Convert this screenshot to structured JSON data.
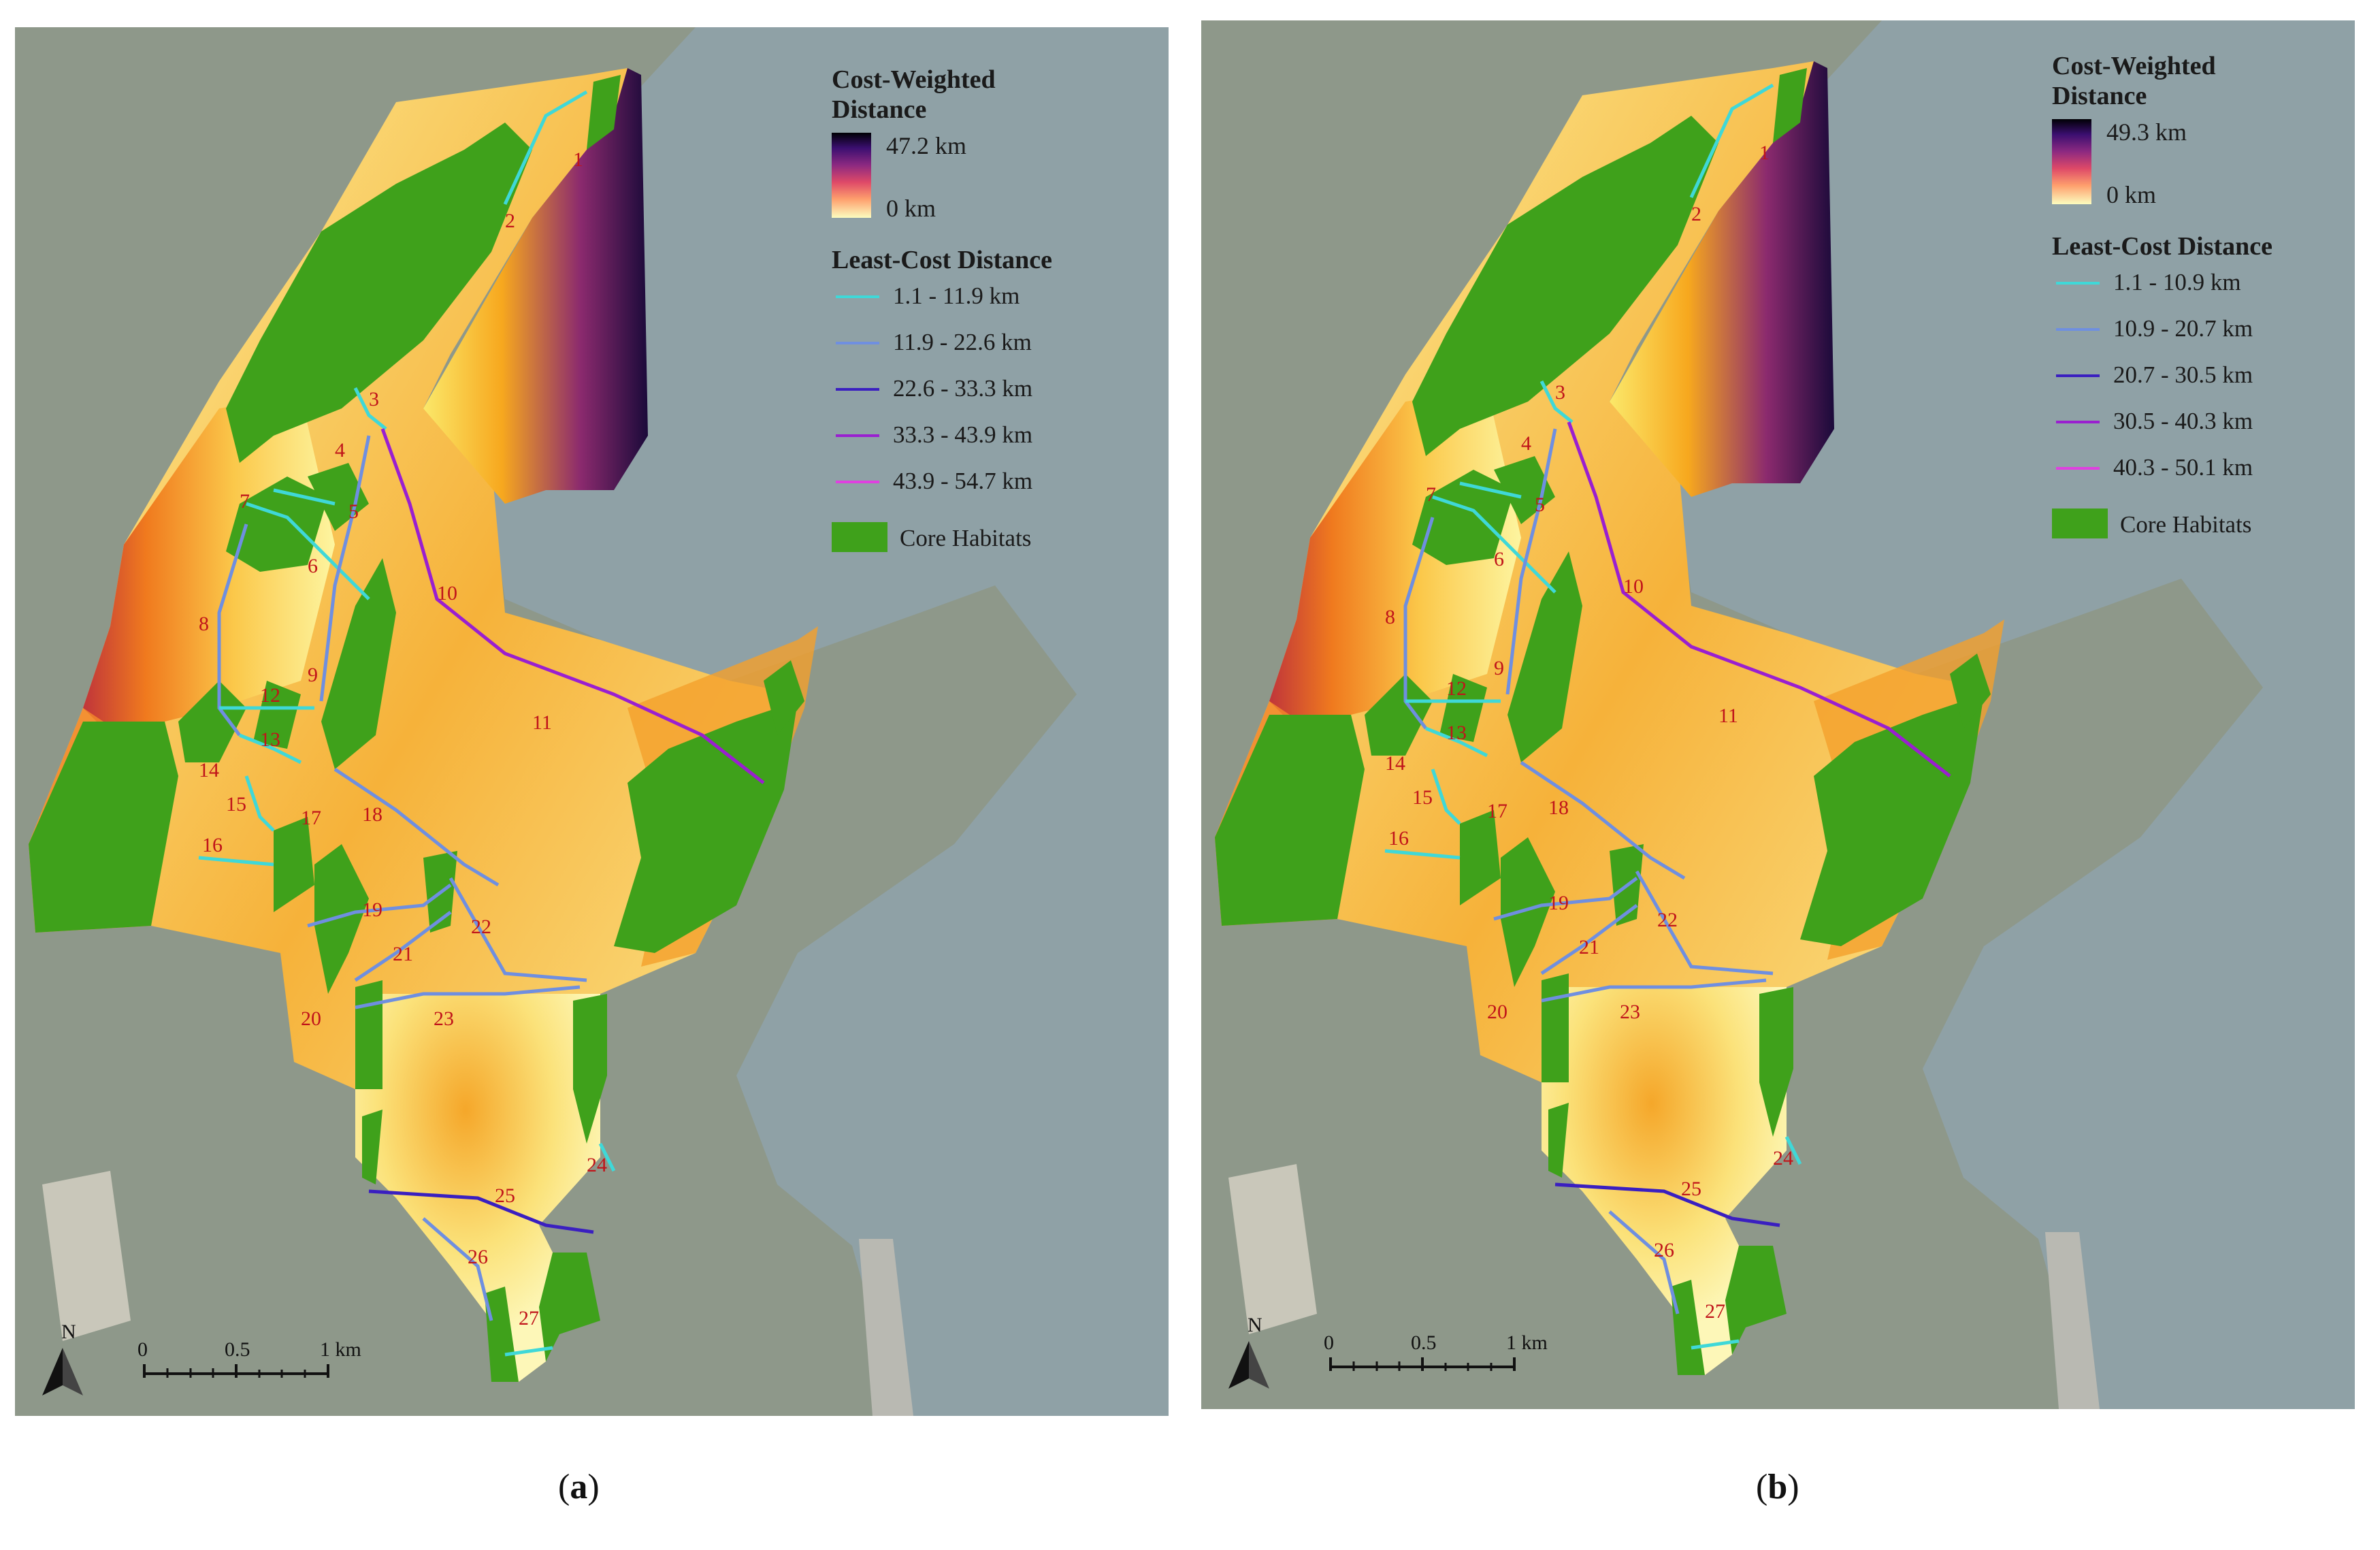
{
  "panels": [
    {
      "id": "a",
      "caption_open": "(",
      "caption_letter": "a",
      "caption_close": ")",
      "legend": {
        "cost_title": "Cost-Weighted\nDistance",
        "cost_max": "47.2 km",
        "cost_min": "0 km",
        "lc_title": "Least-Cost Distance",
        "lc_classes": [
          {
            "label": "1.1 - 11.9 km",
            "color": "#3fd8d8"
          },
          {
            "label": "11.9 - 22.6 km",
            "color": "#6f8fe0"
          },
          {
            "label": "22.6 - 33.3 km",
            "color": "#3a1fc0"
          },
          {
            "label": "33.3 - 43.9 km",
            "color": "#9a1fd0"
          },
          {
            "label": "43.9 - 54.7 km",
            "color": "#e040e0"
          }
        ],
        "core_label": "Core Habitats"
      },
      "scale": {
        "north": "N",
        "t0": "0",
        "t1": "0.5",
        "t2": "1 km"
      }
    },
    {
      "id": "b",
      "caption_open": "(",
      "caption_letter": "b",
      "caption_close": ")",
      "legend": {
        "cost_title": "Cost-Weighted\nDistance",
        "cost_max": "49.3 km",
        "cost_min": "0 km",
        "lc_title": "Least-Cost Distance",
        "lc_classes": [
          {
            "label": "1.1 - 10.9 km",
            "color": "#3fd8d8"
          },
          {
            "label": "10.9 - 20.7 km",
            "color": "#6f8fe0"
          },
          {
            "label": "20.7 - 30.5 km",
            "color": "#3a1fc0"
          },
          {
            "label": "30.5 - 40.3 km",
            "color": "#9a1fd0"
          },
          {
            "label": "40.3 - 50.1 km",
            "color": "#e040e0"
          }
        ],
        "core_label": "Core Habitats"
      },
      "scale": {
        "north": "N",
        "t0": "0",
        "t1": "0.5",
        "t2": "1 km"
      }
    }
  ],
  "corridor_numbers": [
    "1",
    "2",
    "3",
    "4",
    "5",
    "6",
    "7",
    "8",
    "9",
    "10",
    "11",
    "12",
    "13",
    "14",
    "15",
    "16",
    "17",
    "18",
    "19",
    "20",
    "21",
    "22",
    "23",
    "24",
    "25",
    "26",
    "27"
  ],
  "colors": {
    "core_habitat": "#3fa11b",
    "cost_low": "#fcfdbf",
    "cost_high": "#000004",
    "basemap_land": "#8f9a8c",
    "basemap_water": "#8ea0a4"
  }
}
